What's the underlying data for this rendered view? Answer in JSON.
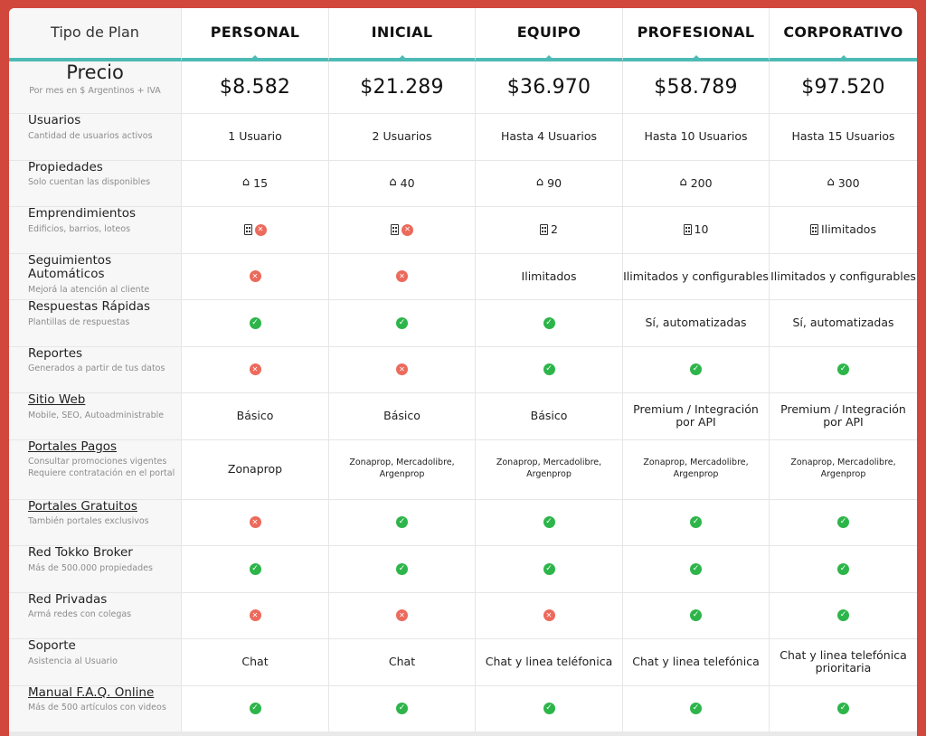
{
  "header": {
    "label": "Tipo de Plan",
    "plans": [
      "PERSONAL",
      "INICIAL",
      "EQUIPO",
      "PROFESIONAL",
      "CORPORATIVO"
    ]
  },
  "price": {
    "title": "Precio",
    "subtitle": "Por mes en $ Argentinos + IVA",
    "values": [
      "$8.582",
      "$21.289",
      "$36.970",
      "$58.789",
      "$97.520"
    ]
  },
  "rows": [
    {
      "title": "Usuarios",
      "subtitle": "Cantidad de usuarios activos",
      "link": false,
      "cells": [
        {
          "text": "1 Usuario"
        },
        {
          "text": "2 Usuarios"
        },
        {
          "text": "Hasta 4 Usuarios"
        },
        {
          "text": "Hasta 10 Usuarios"
        },
        {
          "text": "Hasta 15 Usuarios"
        }
      ]
    },
    {
      "title": "Propiedades",
      "subtitle": "Solo cuentan las disponibles",
      "link": false,
      "cells": [
        {
          "icon": "home-icon",
          "text": "15"
        },
        {
          "icon": "home-icon",
          "text": "40"
        },
        {
          "icon": "home-icon",
          "text": "90"
        },
        {
          "icon": "home-icon",
          "text": "200"
        },
        {
          "icon": "home-icon",
          "text": "300"
        }
      ]
    },
    {
      "title": "Emprendimientos",
      "subtitle": "Edificios, barrios, loteos",
      "link": false,
      "cells": [
        {
          "icon": "building-icon",
          "status": "no"
        },
        {
          "icon": "building-icon",
          "status": "no"
        },
        {
          "icon": "building-icon",
          "text": "2"
        },
        {
          "icon": "building-icon",
          "text": "10"
        },
        {
          "icon": "building-icon",
          "text": "Ilimitados"
        }
      ]
    },
    {
      "title": "Seguimientos Automáticos",
      "subtitle": "Mejorá la atención al cliente",
      "link": false,
      "cells": [
        {
          "status": "no"
        },
        {
          "status": "no"
        },
        {
          "text": "Ilimitados"
        },
        {
          "text": "Ilimitados y configurables"
        },
        {
          "text": "Ilimitados y configurables"
        }
      ]
    },
    {
      "title": "Respuestas Rápidas",
      "subtitle": "Plantillas de respuestas",
      "link": false,
      "cells": [
        {
          "status": "ok"
        },
        {
          "status": "ok"
        },
        {
          "status": "ok"
        },
        {
          "text": "Sí, automatizadas"
        },
        {
          "text": "Sí, automatizadas"
        }
      ]
    },
    {
      "title": "Reportes",
      "subtitle": "Generados a partir de tus datos",
      "link": false,
      "cells": [
        {
          "status": "no"
        },
        {
          "status": "no"
        },
        {
          "status": "ok"
        },
        {
          "status": "ok"
        },
        {
          "status": "ok"
        }
      ]
    },
    {
      "title": "Sitio Web",
      "subtitle": "Mobile, SEO, Autoadministrable",
      "link": true,
      "cells": [
        {
          "text": "Básico"
        },
        {
          "text": "Básico"
        },
        {
          "text": "Básico"
        },
        {
          "text": "Premium / Integración por API"
        },
        {
          "text": "Premium / Integración por API"
        }
      ]
    },
    {
      "title": "Portales Pagos",
      "subtitle": "Consultar promociones vigentes",
      "subtitle2": "Requiere contratación en el portal",
      "link": true,
      "tall": true,
      "cells": [
        {
          "text": "Zonaprop"
        },
        {
          "text": "Zonaprop, Mercadolibre, Argenprop",
          "small": true
        },
        {
          "text": "Zonaprop, Mercadolibre, Argenprop",
          "small": true
        },
        {
          "text": "Zonaprop, Mercadolibre, Argenprop",
          "small": true
        },
        {
          "text": "Zonaprop, Mercadolibre, Argenprop",
          "small": true
        }
      ]
    },
    {
      "title": "Portales Gratuitos",
      "subtitle": "También portales exclusivos",
      "link": true,
      "cells": [
        {
          "status": "no"
        },
        {
          "status": "ok"
        },
        {
          "status": "ok"
        },
        {
          "status": "ok"
        },
        {
          "status": "ok"
        }
      ]
    },
    {
      "title": "Red Tokko Broker",
      "subtitle": "Más de 500.000 propiedades",
      "link": false,
      "cells": [
        {
          "status": "ok"
        },
        {
          "status": "ok"
        },
        {
          "status": "ok"
        },
        {
          "status": "ok"
        },
        {
          "status": "ok"
        }
      ]
    },
    {
      "title": "Red Privadas",
      "subtitle": "Armá redes con colegas",
      "link": false,
      "cells": [
        {
          "status": "no"
        },
        {
          "status": "no"
        },
        {
          "status": "no"
        },
        {
          "status": "ok"
        },
        {
          "status": "ok"
        }
      ]
    },
    {
      "title": "Soporte",
      "subtitle": "Asistencia al Usuario",
      "link": false,
      "cells": [
        {
          "text": "Chat"
        },
        {
          "text": "Chat"
        },
        {
          "text": "Chat y linea teléfonica"
        },
        {
          "text": "Chat y linea telefónica"
        },
        {
          "text": "Chat y linea telefónica prioritaria"
        }
      ]
    },
    {
      "title": "Manual F.A.Q. Online",
      "subtitle": "Más de 500 artículos con videos",
      "link": true,
      "cells": [
        {
          "status": "ok"
        },
        {
          "status": "ok"
        },
        {
          "status": "ok"
        },
        {
          "status": "ok"
        },
        {
          "status": "ok"
        }
      ]
    }
  ]
}
